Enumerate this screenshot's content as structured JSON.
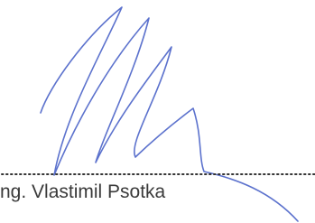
{
  "signature": {
    "name": "ng. Vlastimil Psotka"
  }
}
